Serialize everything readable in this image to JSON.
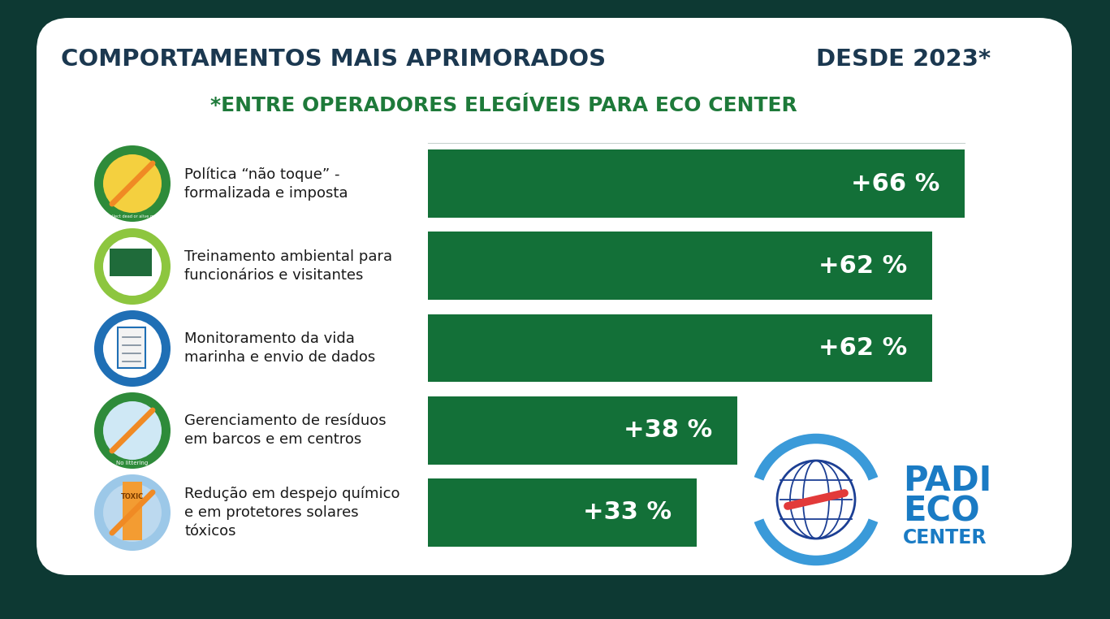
{
  "chart_data": {
    "type": "bar",
    "orientation": "horizontal",
    "title": "COMPORTAMENTOS MAIS APRIMORADOS",
    "title_right": "DESDE 2023*",
    "subtitle": "*ENTRE OPERADORES ELEGÍVEIS PARA ECO CENTER",
    "categories": [
      "Política “não toque” - formalizada e imposta",
      "Treinamento ambiental para funcionários e visitantes",
      "Monitoramento da vida marinha e envio de dados",
      "Gerenciamento de resíduos em barcos e em centros",
      "Redução em despejo químico e em protetores solares tóxicos"
    ],
    "values": [
      66,
      62,
      62,
      38,
      33
    ],
    "value_labels": [
      "+66 %",
      "+62 %",
      "+62 %",
      "+38 %",
      "+33 %"
    ],
    "data_labels": true,
    "color": "#137038",
    "xlim": [
      0,
      66
    ],
    "tick_labels": false,
    "grid": false,
    "annotations": [
      "Do not collect dead or alive marine life",
      "No littering",
      "TOXIC",
      "PADI",
      "ECO",
      "CENTER"
    ]
  }
}
